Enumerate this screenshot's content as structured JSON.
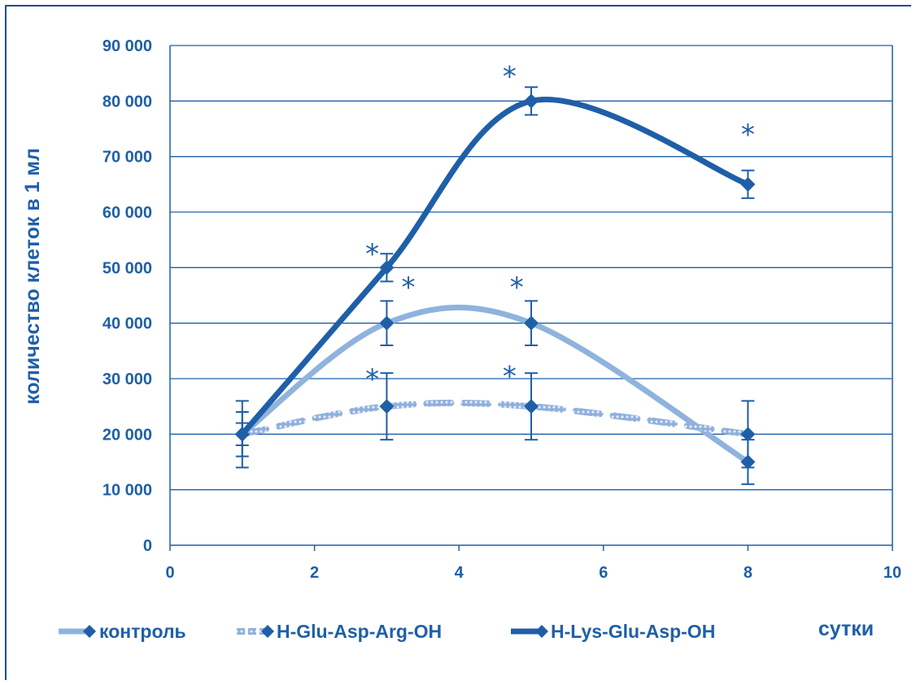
{
  "chart_data": {
    "type": "line",
    "title": "",
    "xlabel": "сутки",
    "ylabel": "количество клеток в 1 мл",
    "xlim": [
      0,
      10
    ],
    "ylim": [
      0,
      90000
    ],
    "xticks": [
      0,
      2,
      4,
      6,
      8,
      10
    ],
    "yticks": [
      0,
      10000,
      20000,
      30000,
      40000,
      50000,
      60000,
      70000,
      80000,
      90000
    ],
    "ytick_labels": [
      "0",
      "10 000",
      "20 000",
      "30 000",
      "40 000",
      "50 000",
      "60 000",
      "70 000",
      "80 000",
      "90 000"
    ],
    "xtick_labels": [
      "0",
      "2",
      "4",
      "6",
      "8",
      "10"
    ],
    "grid": "horizontal",
    "legend": "bottom",
    "series": [
      {
        "name": "контроль",
        "x": [
          1,
          3,
          5,
          8
        ],
        "y": [
          20000,
          40000,
          40000,
          15000
        ],
        "error": [
          4000,
          4000,
          4000,
          4000
        ],
        "color": "#8fb3dd",
        "style": "solid-light"
      },
      {
        "name": "H-Glu-Asp-Arg-OH",
        "x": [
          1,
          3,
          5,
          8
        ],
        "y": [
          20000,
          25000,
          25000,
          20000
        ],
        "error": [
          6000,
          6000,
          6000,
          6000
        ],
        "color": "#6d93c8",
        "style": "dashed-textured"
      },
      {
        "name": "H-Lys-Glu-Asp-OH",
        "x": [
          1,
          3,
          5,
          8
        ],
        "y": [
          20000,
          50000,
          80000,
          65000
        ],
        "error": [
          2000,
          2500,
          2500,
          2500
        ],
        "color": "#1f5fa8",
        "style": "solid-dark"
      }
    ],
    "annotations": [
      {
        "text": "*",
        "x": 2.8,
        "y": 54000
      },
      {
        "text": "*",
        "x": 3.3,
        "y": 48000
      },
      {
        "text": "*",
        "x": 4.8,
        "y": 48000
      },
      {
        "text": "*",
        "x": 2.8,
        "y": 31500
      },
      {
        "text": "*",
        "x": 4.7,
        "y": 32000
      },
      {
        "text": "*",
        "x": 4.7,
        "y": 86000
      },
      {
        "text": "*",
        "x": 8.0,
        "y": 75500
      }
    ],
    "colors": {
      "axis": "#1f5fa8",
      "grid": "#1f5fa8",
      "marker": "#1f5fa8"
    }
  }
}
